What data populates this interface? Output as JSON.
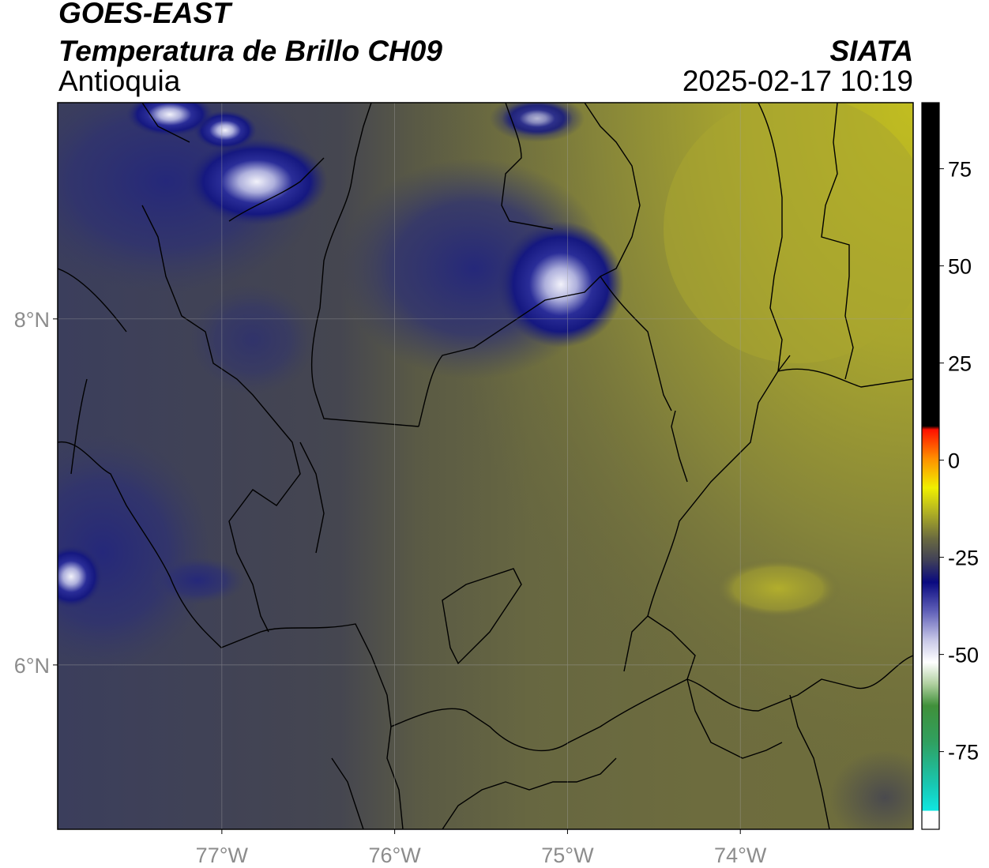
{
  "header": {
    "satellite": "GOES-EAST",
    "product": "Temperatura de Brillo CH09",
    "region": "Antioquia",
    "agency": "SIATA",
    "datetime": "2025-02-17 10:19"
  },
  "map": {
    "lon_range": [
      -77.95,
      -73.0
    ],
    "lat_range": [
      5.05,
      9.25
    ],
    "lon_ticks": [
      {
        "value": -77,
        "label": "77°W"
      },
      {
        "value": -76,
        "label": "76°W"
      },
      {
        "value": -75,
        "label": "75°W"
      },
      {
        "value": -74,
        "label": "74°W"
      }
    ],
    "lat_ticks": [
      {
        "value": 8,
        "label": "8°N"
      },
      {
        "value": 6,
        "label": "6°N"
      }
    ],
    "gridlines": true,
    "colors": {
      "warm_west": "#3c3f5a",
      "warm_east": "#6b6b40",
      "yellow_ne": "#b8b52a",
      "deep_cloud": "#0d0f7a",
      "cold_top": "#e6e6f5"
    }
  },
  "colorbar": {
    "range": [
      -95,
      92
    ],
    "ticks": [
      {
        "value": 75,
        "label": "75"
      },
      {
        "value": 50,
        "label": "50"
      },
      {
        "value": 25,
        "label": "25"
      },
      {
        "value": 0,
        "label": "0"
      },
      {
        "value": -25,
        "label": "-25"
      },
      {
        "value": -50,
        "label": "-50"
      },
      {
        "value": -75,
        "label": "-75"
      }
    ]
  }
}
